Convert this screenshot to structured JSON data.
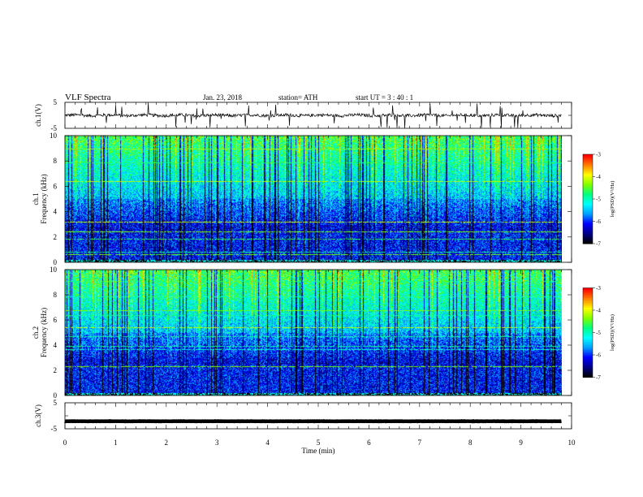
{
  "header": {
    "title": "VLF  Spectra",
    "date": "Jan. 23, 2018",
    "station": "station= ATH",
    "start": "start  UT =   3 : 40 : 1"
  },
  "colors": {
    "ink": "#000000",
    "colormap": [
      "#000000",
      "#00008b",
      "#0000ff",
      "#00a0ff",
      "#00ffff",
      "#00ff80",
      "#80ff00",
      "#ffff00",
      "#ff8000",
      "#ff0000",
      "#ffffff"
    ]
  },
  "chart_data": [
    {
      "id": "ch1-waveform",
      "type": "line",
      "ylabel": "ch.1(V)",
      "ylim": [
        -5,
        5
      ],
      "y_ticks": [
        "5",
        "-5"
      ],
      "xlim": [
        0,
        10
      ],
      "series": [
        {
          "name": "",
          "baseline_v": 0,
          "noise_amplitude_v": 1.2
        }
      ]
    },
    {
      "id": "ch1-spectrogram",
      "type": "heatmap",
      "ylabel": "ch.1\nFrequency (kHz)",
      "ylim": [
        0,
        10
      ],
      "y_ticks": [
        "0",
        "2",
        "4",
        "6",
        "8",
        "10"
      ],
      "xlim": [
        0,
        10
      ],
      "data_end_min": 9.8,
      "colorbar": {
        "label": "log(PSD)(V²/Hz)",
        "range": [
          -7,
          -3
        ],
        "ticks": [
          "-3",
          "-4",
          "-5",
          "-6",
          "-7"
        ]
      }
    },
    {
      "id": "ch2-spectrogram",
      "type": "heatmap",
      "ylabel": "ch.2\nFrequency (kHz)",
      "ylim": [
        0,
        10
      ],
      "y_ticks": [
        "0",
        "2",
        "4",
        "6",
        "8",
        "10"
      ],
      "xlim": [
        0,
        10
      ],
      "data_end_min": 9.8,
      "colorbar": {
        "label": "log(PSD)(V²/Hz)",
        "range": [
          -7,
          -3
        ],
        "ticks": [
          "-3",
          "-4",
          "-5",
          "-6",
          "-7"
        ]
      }
    },
    {
      "id": "ch3-waveform",
      "type": "line",
      "ylabel": "ch.3(V)",
      "ylim": [
        -5,
        5
      ],
      "y_ticks": [
        "5",
        "-5"
      ],
      "xlim": [
        0,
        10
      ],
      "series": [
        {
          "name": "",
          "baseline_v": -2.1,
          "noise_amplitude_v": 0.1
        }
      ]
    }
  ],
  "x_axis": {
    "label": "Time  (min)",
    "ticks": [
      "0",
      "1",
      "2",
      "3",
      "4",
      "5",
      "6",
      "7",
      "8",
      "9",
      "10"
    ]
  }
}
